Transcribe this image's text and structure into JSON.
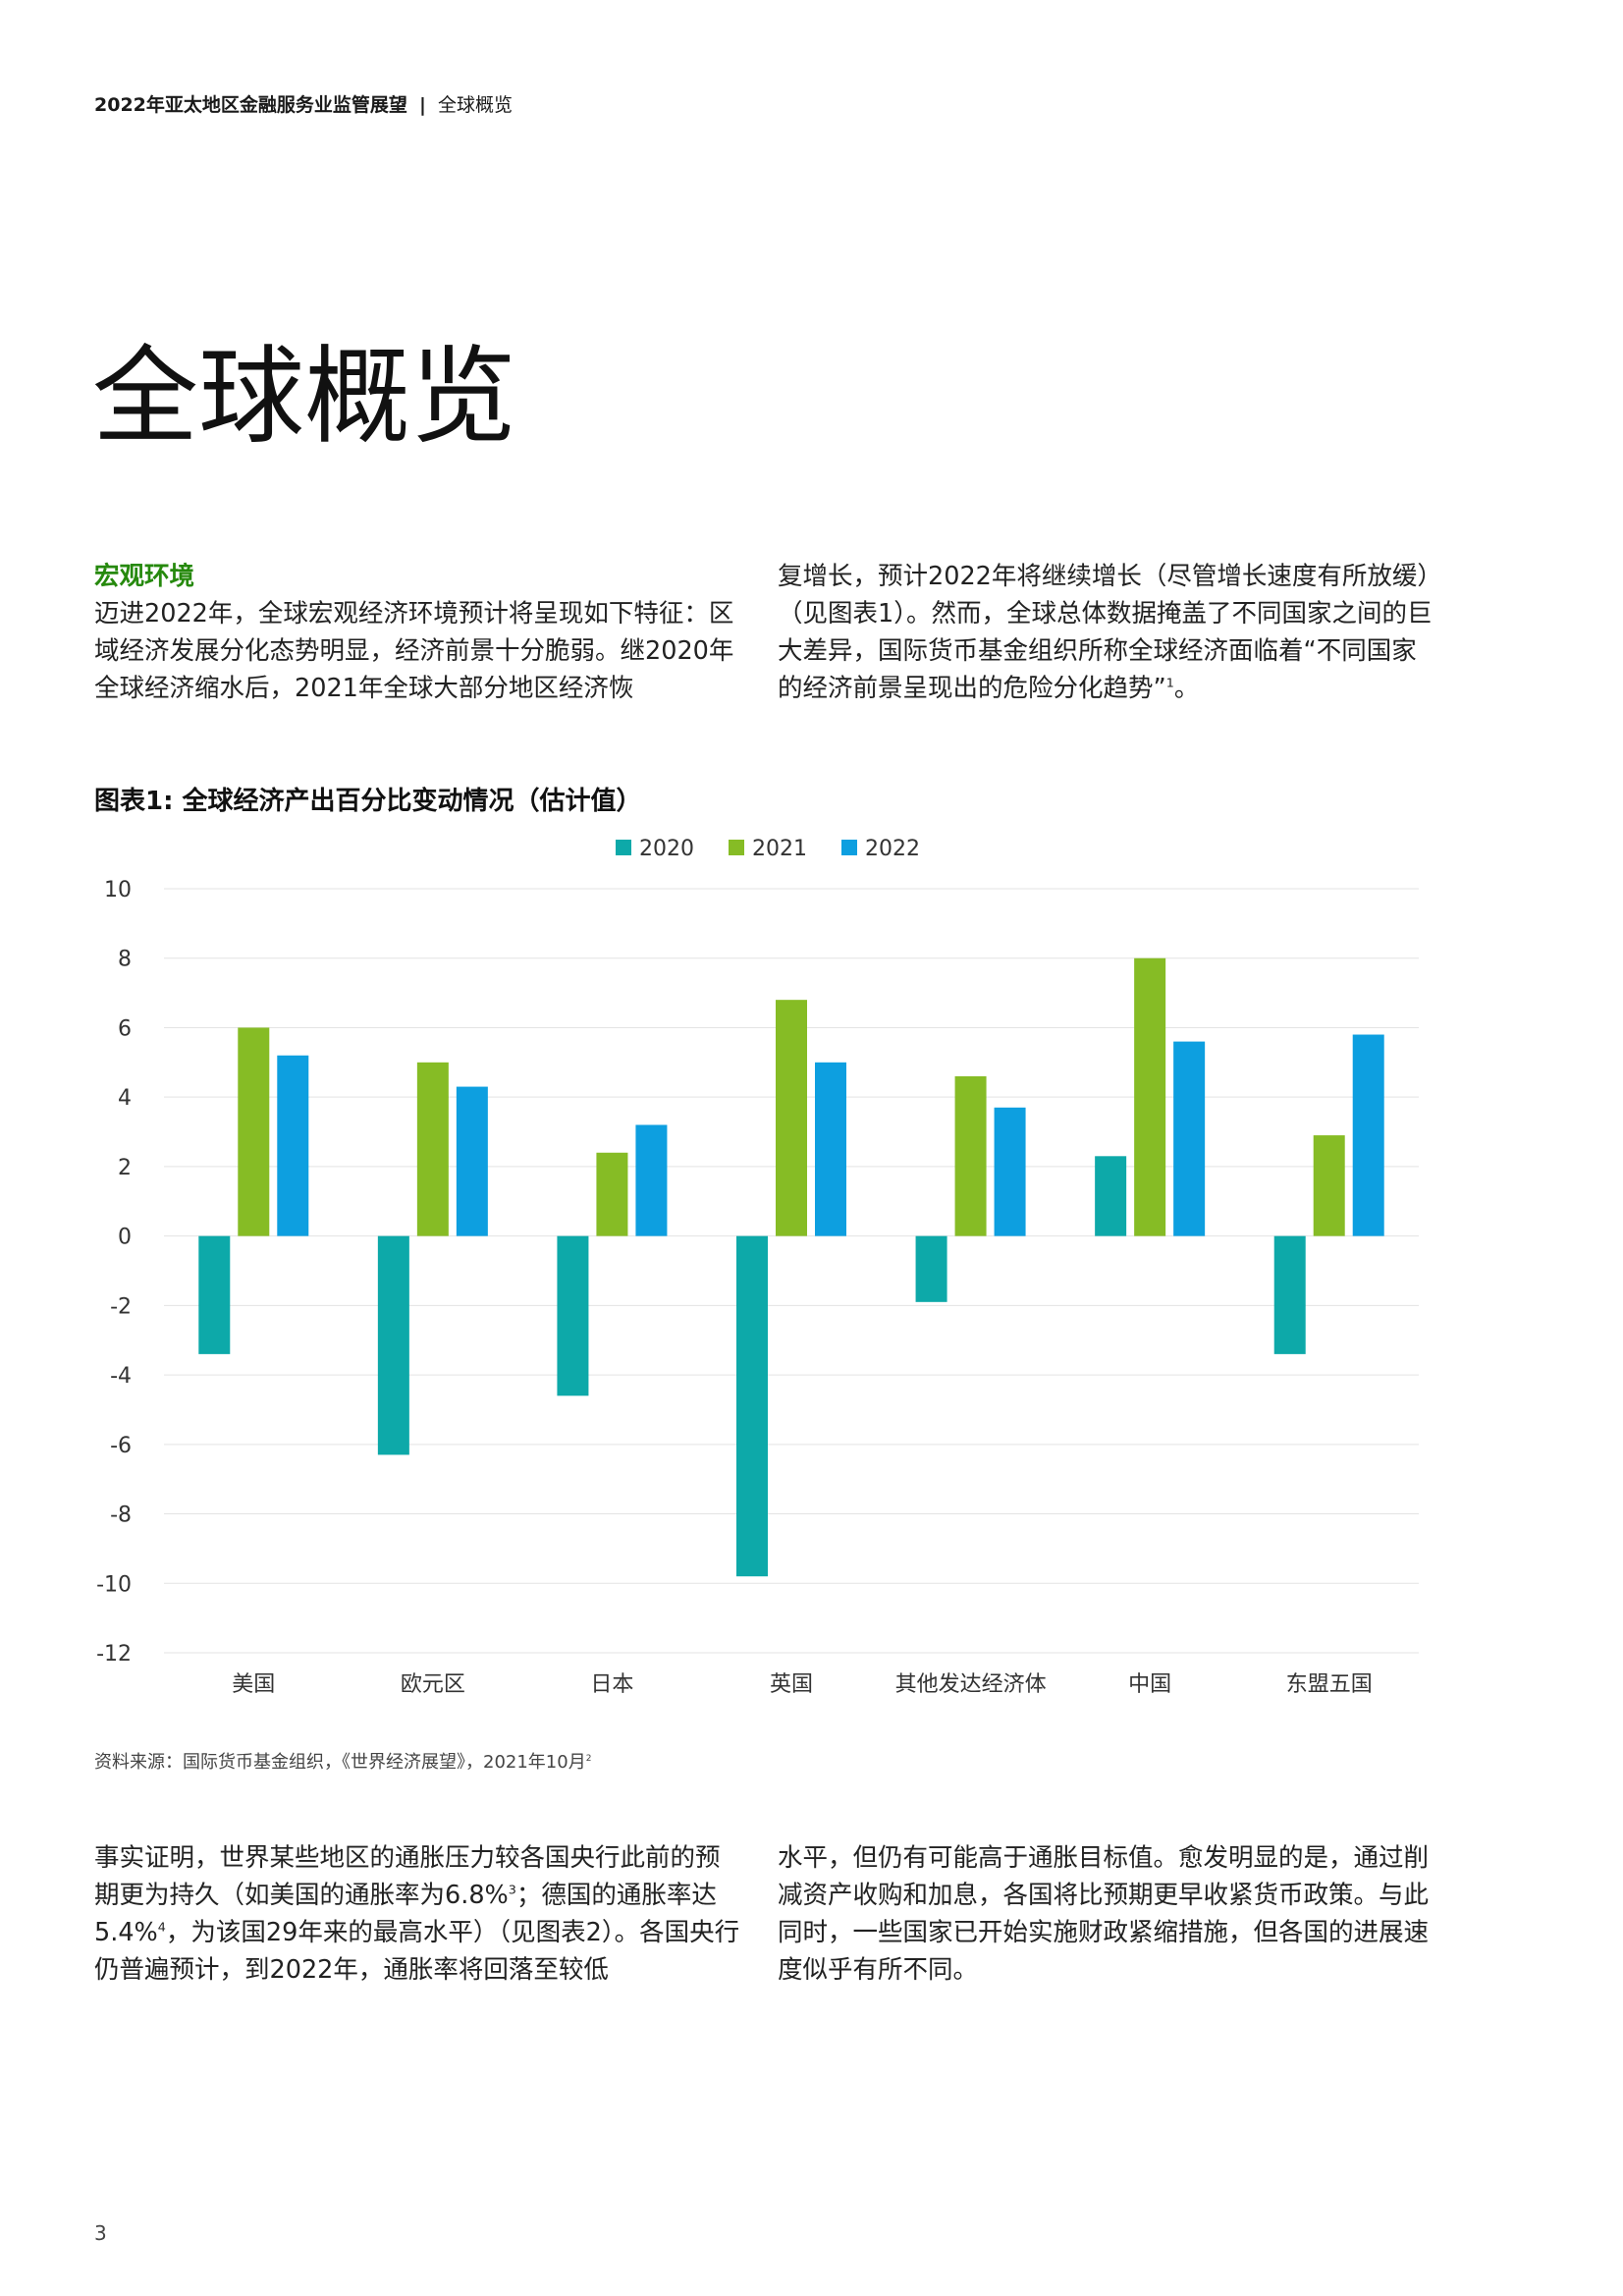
{
  "header": {
    "report": "2022年亚太地区金融服务业监管展望",
    "separator": "|",
    "section": "全球概览"
  },
  "title": "全球概览",
  "intro": {
    "heading": "宏观环境",
    "left_text": "迈进2022年，全球宏观经济环境预计将呈现如下特征：区域经济发展分化态势明显，经济前景十分脆弱。继2020年全球经济缩水后，2021年全球大部分地区经济恢",
    "right_text": "复增长，预计2022年将继续增长（尽管增长速度有所放缓）（见图表1）。然而，全球总体数据掩盖了不同国家之间的巨大差异，国际货币基金组织所称全球经济面临着“不同国家的经济前景呈现出的危险分化趋势”",
    "right_sup": "1",
    "right_end": "。"
  },
  "figure": {
    "title": "图表1: 全球经济产出百分比变动情况（估计值）",
    "source": "资料来源：国际货币基金组织，《世界经济展望》，2021年10月",
    "source_sup": "2"
  },
  "chart_data": {
    "type": "bar",
    "categories": [
      "美国",
      "欧元区",
      "日本",
      "英国",
      "其他发达经济体",
      "中国",
      "东盟五国"
    ],
    "series": [
      {
        "name": "2020",
        "color": "#0da9a9",
        "values": [
          -3.4,
          -6.3,
          -4.6,
          -9.8,
          -1.9,
          2.3,
          -3.4
        ]
      },
      {
        "name": "2021",
        "color": "#86bc25",
        "values": [
          6.0,
          5.0,
          2.4,
          6.8,
          4.6,
          8.0,
          2.9
        ]
      },
      {
        "name": "2022",
        "color": "#0d9fe0",
        "values": [
          5.2,
          4.3,
          3.2,
          5.0,
          3.7,
          5.6,
          5.8
        ]
      }
    ],
    "ylim": [
      -12,
      10
    ],
    "yticks": [
      10,
      8,
      6,
      4,
      2,
      0,
      -2,
      -4,
      -6,
      -8,
      -10,
      -12
    ],
    "legend": "top-center",
    "grid": true
  },
  "body": {
    "left_p1": "事实证明，世界某些地区的通胀压力较各国央行此前的预期更为持久（如美国的通胀率为6.8%",
    "left_sup1": "3",
    "left_p2": "；德国的通胀率达5.4%",
    "left_sup2": "4",
    "left_p3": "，为该国29年来的最高水平）（见图表2）。各国央行仍普遍预计，到2022年，通胀率将回落至较低",
    "right_text": "水平，但仍有可能高于通胀目标值。愈发明显的是，通过削减资产收购和加息，各国将比预期更早收紧货币政策。与此同时，一些国家已开始实施财政紧缩措施，但各国的进展速度似乎有所不同。"
  },
  "page_number": "3"
}
